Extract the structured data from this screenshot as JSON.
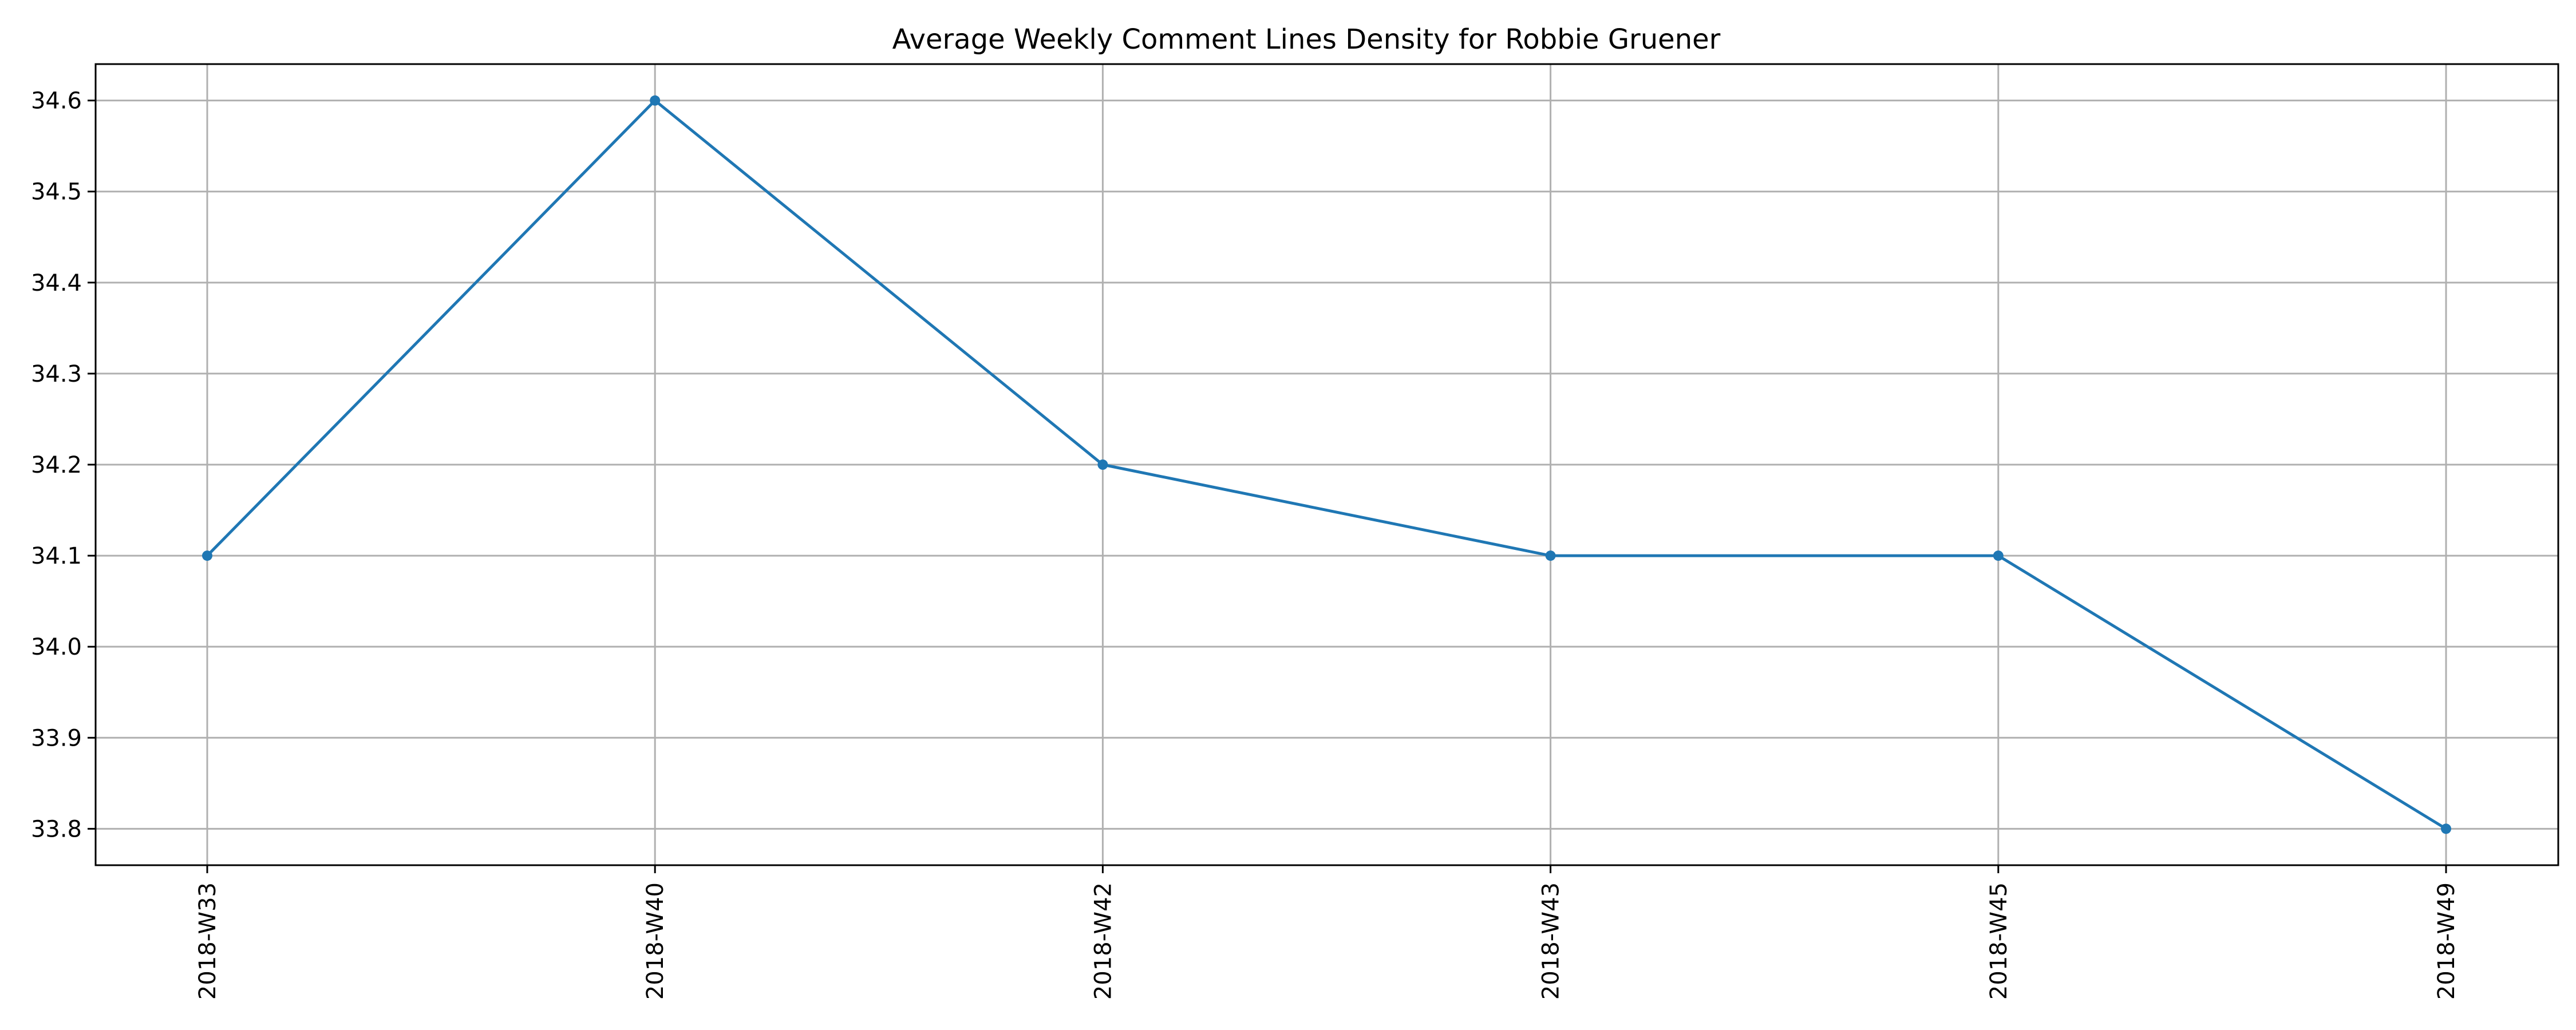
{
  "chart_data": {
    "type": "line",
    "title": "Average Weekly Comment Lines Density for Robbie Gruener",
    "xlabel": "",
    "ylabel": "",
    "categories": [
      "2018-W33",
      "2018-W40",
      "2018-W42",
      "2018-W43",
      "2018-W45",
      "2018-W49"
    ],
    "series": [
      {
        "values": [
          34.1,
          34.6,
          34.2,
          34.1,
          34.1,
          33.8
        ]
      }
    ],
    "ylim": [
      33.76,
      34.64
    ],
    "yticks": [
      "33.8",
      "33.9",
      "34.0",
      "34.1",
      "34.2",
      "34.3",
      "34.4",
      "34.5",
      "34.6"
    ],
    "grid": true,
    "legend": "none",
    "colors": {
      "line": "#1f77b4",
      "grid": "#b0b0b0",
      "axis": "#000000"
    }
  }
}
